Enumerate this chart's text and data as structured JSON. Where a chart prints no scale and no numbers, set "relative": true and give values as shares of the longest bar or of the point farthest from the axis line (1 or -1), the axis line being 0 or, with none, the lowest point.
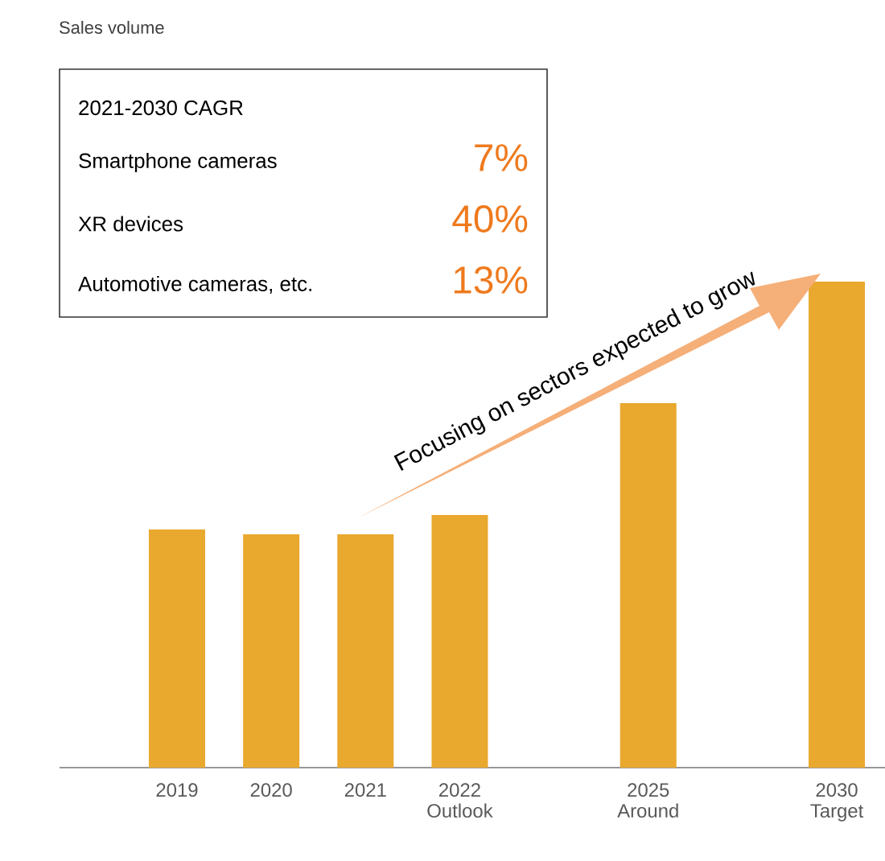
{
  "chart_data": {
    "type": "bar",
    "relative": true,
    "color": "#e9a82e",
    "categories": [
      "2019",
      "2020",
      "2021",
      "2022 Outlook",
      null,
      "2025 Around",
      null,
      "2030 Target"
    ],
    "values": [
      0.49,
      0.48,
      0.48,
      0.52,
      null,
      0.75,
      null,
      1
    ],
    "annotations": [
      "2021-2030 CAGR",
      "Smartphone cameras",
      "7%",
      "XR devices",
      "40%",
      "Automotive cameras, etc.",
      "13%",
      "Focusing on sectors expected to grow",
      "Sales volume"
    ]
  }
}
